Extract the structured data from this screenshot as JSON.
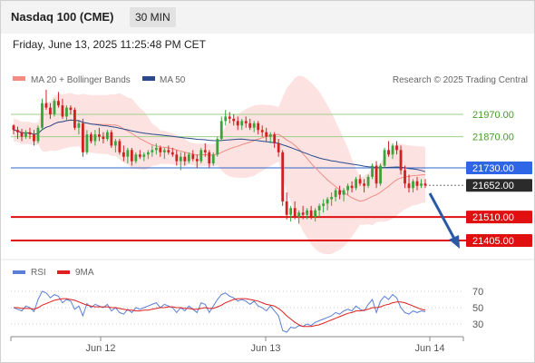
{
  "header": {
    "title": "Nasdaq 100 (CME)",
    "timeframe": "30 MIN"
  },
  "datetime": "Friday, June 13, 2025 11:25:48 PM CET",
  "credit": "Research © 2025 Trading Central",
  "legend_main": [
    {
      "label": "MA 20 + Bollinger Bands",
      "color": "#f28b82"
    },
    {
      "label": "MA 50",
      "color": "#2b4a8b"
    }
  ],
  "legend_rsi": [
    {
      "label": "RSI",
      "color": "#5a7fd6"
    },
    {
      "label": "9MA",
      "color": "#e02020"
    }
  ],
  "chart_data": {
    "type": "candlestick",
    "x_ticks": [
      "Jun 12",
      "Jun 13",
      "Jun 14"
    ],
    "price_range": [
      21340,
      22100
    ],
    "levels": [
      {
        "value": 21970.0,
        "label": "21970.00",
        "style": "resistance"
      },
      {
        "value": 21870.0,
        "label": "21870.00",
        "style": "resistance"
      },
      {
        "value": 21730.0,
        "label": "21730.00",
        "style": "pivot"
      },
      {
        "value": 21652.0,
        "label": "21652.00",
        "style": "last"
      },
      {
        "value": 21510.0,
        "label": "21510.00",
        "style": "support"
      },
      {
        "value": 21405.0,
        "label": "21405.00",
        "style": "support"
      }
    ],
    "candles": [
      [
        21920,
        21925,
        21880,
        21900
      ],
      [
        21900,
        21915,
        21860,
        21890
      ],
      [
        21890,
        21905,
        21850,
        21870
      ],
      [
        21870,
        21900,
        21860,
        21890
      ],
      [
        21890,
        21910,
        21860,
        21880
      ],
      [
        21880,
        21900,
        21830,
        21850
      ],
      [
        21850,
        21920,
        21840,
        21910
      ],
      [
        21910,
        22040,
        21900,
        22020
      ],
      [
        22020,
        22080,
        21990,
        22000
      ],
      [
        22000,
        22020,
        21950,
        21970
      ],
      [
        21970,
        22040,
        21960,
        22030
      ],
      [
        22030,
        22070,
        22000,
        22010
      ],
      [
        22010,
        22040,
        21950,
        21960
      ],
      [
        21960,
        22010,
        21940,
        22000
      ],
      [
        22000,
        22010,
        21970,
        21990
      ],
      [
        21990,
        22000,
        21900,
        21910
      ],
      [
        21910,
        21940,
        21880,
        21930
      ],
      [
        21930,
        21950,
        21780,
        21800
      ],
      [
        21800,
        21900,
        21790,
        21880
      ],
      [
        21880,
        21890,
        21840,
        21850
      ],
      [
        21850,
        21900,
        21830,
        21880
      ],
      [
        21880,
        21910,
        21850,
        21870
      ],
      [
        21870,
        21890,
        21840,
        21860
      ],
      [
        21860,
        21900,
        21850,
        21890
      ],
      [
        21890,
        21900,
        21820,
        21830
      ],
      [
        21830,
        21860,
        21800,
        21850
      ],
      [
        21850,
        21860,
        21790,
        21800
      ],
      [
        21800,
        21830,
        21760,
        21780
      ],
      [
        21780,
        21820,
        21750,
        21810
      ],
      [
        21810,
        21820,
        21740,
        21760
      ],
      [
        21760,
        21800,
        21750,
        21790
      ],
      [
        21790,
        21810,
        21770,
        21780
      ],
      [
        21780,
        21800,
        21760,
        21790
      ],
      [
        21790,
        21810,
        21770,
        21800
      ],
      [
        21800,
        21830,
        21780,
        21810
      ],
      [
        21810,
        21840,
        21790,
        21820
      ],
      [
        21820,
        21830,
        21780,
        21800
      ],
      [
        21800,
        21820,
        21770,
        21810
      ],
      [
        21810,
        21830,
        21790,
        21800
      ],
      [
        21800,
        21820,
        21780,
        21790
      ],
      [
        21790,
        21810,
        21740,
        21760
      ],
      [
        21760,
        21800,
        21720,
        21780
      ],
      [
        21780,
        21800,
        21740,
        21760
      ],
      [
        21760,
        21800,
        21750,
        21790
      ],
      [
        21790,
        21810,
        21760,
        21770
      ],
      [
        21770,
        21790,
        21730,
        21760
      ],
      [
        21760,
        21820,
        21750,
        21810
      ],
      [
        21810,
        21840,
        21780,
        21800
      ],
      [
        21800,
        21810,
        21730,
        21750
      ],
      [
        21750,
        21800,
        21740,
        21790
      ],
      [
        21790,
        21870,
        21780,
        21860
      ],
      [
        21860,
        21960,
        21850,
        21940
      ],
      [
        21940,
        21990,
        21920,
        21960
      ],
      [
        21960,
        21980,
        21930,
        21950
      ],
      [
        21950,
        21970,
        21920,
        21940
      ],
      [
        21940,
        21960,
        21900,
        21920
      ],
      [
        21920,
        21950,
        21900,
        21940
      ],
      [
        21940,
        21960,
        21910,
        21930
      ],
      [
        21930,
        21950,
        21900,
        21910
      ],
      [
        21910,
        21940,
        21890,
        21930
      ],
      [
        21930,
        21940,
        21880,
        21900
      ],
      [
        21900,
        21920,
        21870,
        21890
      ],
      [
        21890,
        21910,
        21850,
        21870
      ],
      [
        21870,
        21890,
        21840,
        21880
      ],
      [
        21880,
        21890,
        21820,
        21840
      ],
      [
        21840,
        21860,
        21780,
        21800
      ],
      [
        21800,
        21810,
        21560,
        21580
      ],
      [
        21580,
        21620,
        21500,
        21520
      ],
      [
        21520,
        21560,
        21490,
        21550
      ],
      [
        21550,
        21580,
        21500,
        21510
      ],
      [
        21510,
        21540,
        21480,
        21530
      ],
      [
        21530,
        21560,
        21500,
        21520
      ],
      [
        21520,
        21550,
        21500,
        21540
      ],
      [
        21540,
        21560,
        21500,
        21510
      ],
      [
        21510,
        21550,
        21490,
        21540
      ],
      [
        21540,
        21570,
        21510,
        21560
      ],
      [
        21560,
        21590,
        21530,
        21570
      ],
      [
        21570,
        21600,
        21540,
        21590
      ],
      [
        21590,
        21620,
        21560,
        21600
      ],
      [
        21600,
        21640,
        21580,
        21630
      ],
      [
        21630,
        21650,
        21590,
        21610
      ],
      [
        21610,
        21640,
        21580,
        21630
      ],
      [
        21630,
        21660,
        21610,
        21650
      ],
      [
        21650,
        21670,
        21620,
        21640
      ],
      [
        21640,
        21690,
        21630,
        21680
      ],
      [
        21680,
        21700,
        21650,
        21660
      ],
      [
        21660,
        21680,
        21620,
        21650
      ],
      [
        21650,
        21700,
        21640,
        21690
      ],
      [
        21690,
        21750,
        21680,
        21740
      ],
      [
        21740,
        21760,
        21640,
        21660
      ],
      [
        21660,
        21750,
        21650,
        21740
      ],
      [
        21740,
        21820,
        21730,
        21810
      ],
      [
        21810,
        21850,
        21780,
        21790
      ],
      [
        21790,
        21840,
        21770,
        21830
      ],
      [
        21830,
        21850,
        21790,
        21810
      ],
      [
        21810,
        21830,
        21700,
        21720
      ],
      [
        21720,
        21740,
        21640,
        21660
      ],
      [
        21660,
        21700,
        21620,
        21640
      ],
      [
        21640,
        21680,
        21620,
        21670
      ],
      [
        21670,
        21690,
        21630,
        21650
      ],
      [
        21650,
        21680,
        21640,
        21660
      ],
      [
        21660,
        21680,
        21640,
        21652
      ]
    ],
    "rsi_axis_ticks": [
      70,
      50,
      30
    ],
    "rsi_range": [
      15,
      80
    ],
    "rsi": [
      50,
      48,
      46,
      52,
      50,
      45,
      60,
      70,
      68,
      62,
      66,
      64,
      56,
      60,
      58,
      48,
      52,
      40,
      55,
      50,
      54,
      52,
      50,
      54,
      46,
      50,
      44,
      42,
      48,
      44,
      50,
      48,
      50,
      52,
      54,
      56,
      50,
      54,
      52,
      50,
      44,
      50,
      46,
      52,
      48,
      44,
      56,
      54,
      44,
      52,
      60,
      66,
      68,
      64,
      62,
      58,
      60,
      58,
      54,
      58,
      52,
      50,
      46,
      52,
      46,
      40,
      22,
      20,
      26,
      25,
      28,
      27,
      30,
      28,
      32,
      34,
      36,
      38,
      40,
      44,
      42,
      46,
      48,
      46,
      52,
      48,
      46,
      54,
      60,
      44,
      58,
      64,
      60,
      66,
      62,
      50,
      44,
      42,
      46,
      44,
      46,
      45
    ],
    "rsi_ma": [
      50,
      50,
      49,
      49,
      49,
      48,
      50,
      53,
      55,
      57,
      59,
      60,
      61,
      61,
      60,
      59,
      57,
      55,
      53,
      52,
      51,
      51,
      51,
      51,
      50,
      50,
      49,
      48,
      47,
      47,
      46,
      46,
      47,
      47,
      48,
      49,
      50,
      50,
      51,
      51,
      50,
      50,
      49,
      49,
      48,
      48,
      49,
      50,
      49,
      49,
      51,
      53,
      56,
      58,
      60,
      61,
      61,
      61,
      60,
      59,
      58,
      56,
      54,
      53,
      52,
      49,
      45,
      40,
      36,
      32,
      29,
      27,
      27,
      27,
      28,
      29,
      31,
      33,
      35,
      37,
      39,
      41,
      43,
      44,
      46,
      46,
      47,
      48,
      50,
      50,
      51,
      53,
      54,
      56,
      57,
      57,
      56,
      54,
      52,
      50,
      48,
      47
    ]
  }
}
